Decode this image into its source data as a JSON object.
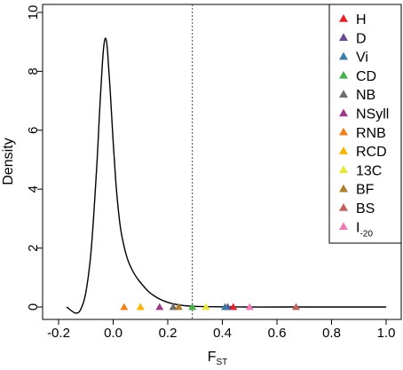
{
  "chart_data": {
    "type": "line",
    "xlabel": "F",
    "xlabel_sub": "ST",
    "ylabel": "Density",
    "xlim": [
      -0.2,
      1.0
    ],
    "ylim": [
      0,
      10
    ],
    "x_ticks": [
      "-0.2",
      "0.0",
      "0.2",
      "0.4",
      "0.6",
      "0.8",
      "1.0"
    ],
    "x_tick_values": [
      -0.2,
      0.0,
      0.2,
      0.4,
      0.6,
      0.8,
      1.0
    ],
    "y_ticks": [
      "0",
      "2",
      "4",
      "6",
      "8",
      "10"
    ],
    "y_tick_values": [
      0,
      2,
      4,
      6,
      8,
      10
    ],
    "threshold_x": 0.29,
    "threshold_style": "dotted vertical line",
    "legend_position": "top-right",
    "density_curve": {
      "x": [
        -0.17,
        -0.14,
        -0.12,
        -0.1,
        -0.08,
        -0.06,
        -0.05,
        -0.04,
        -0.035,
        -0.03,
        -0.025,
        -0.02,
        -0.01,
        0.0,
        0.01,
        0.02,
        0.03,
        0.05,
        0.07,
        0.09,
        0.11,
        0.13,
        0.15,
        0.17,
        0.19,
        0.21,
        0.23,
        0.25,
        0.28,
        0.3,
        0.35,
        0.4,
        0.5,
        0.6,
        0.8,
        1.0
      ],
      "y": [
        0.0,
        -0.2,
        -0.1,
        0.5,
        2.0,
        4.8,
        6.6,
        8.2,
        8.8,
        9.1,
        9.05,
        8.6,
        7.2,
        5.6,
        4.2,
        3.2,
        2.5,
        1.7,
        1.25,
        0.95,
        0.72,
        0.52,
        0.38,
        0.27,
        0.19,
        0.13,
        0.09,
        0.06,
        0.03,
        0.02,
        0.01,
        0.005,
        0.0,
        0.0,
        0.0,
        0.0
      ]
    },
    "series": [
      {
        "name": "H",
        "label": "H",
        "sub": "",
        "x": 0.44,
        "color": "#E3242B"
      },
      {
        "name": "D",
        "label": "D",
        "sub": "",
        "x": 0.42,
        "color": "#6A4C93"
      },
      {
        "name": "Vi",
        "label": "Vi",
        "sub": "",
        "x": 0.41,
        "color": "#3A7CA5"
      },
      {
        "name": "CD",
        "label": "CD",
        "sub": "",
        "x": 0.29,
        "color": "#4CAF50"
      },
      {
        "name": "NB",
        "label": "NB",
        "sub": "",
        "x": 0.22,
        "color": "#6E6E6E"
      },
      {
        "name": "NSyll",
        "label": "NSyll",
        "sub": "",
        "x": 0.17,
        "color": "#9B3C8A"
      },
      {
        "name": "RNB",
        "label": "RNB",
        "sub": "",
        "x": 0.04,
        "color": "#F07F1E"
      },
      {
        "name": "RCD",
        "label": "RCD",
        "sub": "",
        "x": 0.1,
        "color": "#F7B500"
      },
      {
        "name": "13C",
        "label": "13C",
        "sub": "",
        "x": 0.34,
        "color": "#E8E83C"
      },
      {
        "name": "BF",
        "label": "BF",
        "sub": "",
        "x": 0.24,
        "color": "#B07D2E"
      },
      {
        "name": "BS",
        "label": "BS",
        "sub": "",
        "x": 0.67,
        "color": "#C0625A"
      },
      {
        "name": "I-20",
        "label": "I",
        "sub": "-20",
        "x": 0.5,
        "color": "#F27BB6"
      }
    ]
  }
}
